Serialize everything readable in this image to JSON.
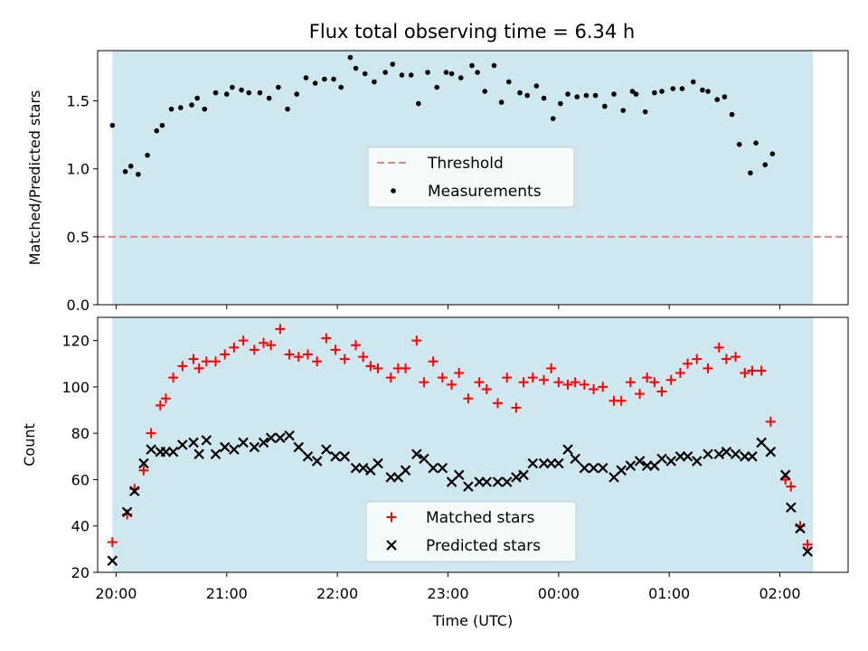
{
  "title": "Flux total observing time = 6.34 h",
  "colors": {
    "background_band": "#cfe8f0",
    "threshold": "#f08080",
    "measurements": "#000000",
    "matched": "#ff0000",
    "predicted": "#000000"
  },
  "chart_data": [
    {
      "type": "scatter",
      "panel": "top",
      "title": "Flux total observing time = 6.34 h",
      "ylabel": "Matched/Predicted stars",
      "xlabel": "",
      "ylim": [
        0,
        1.87
      ],
      "yticks": [
        0.0,
        0.5,
        1.0,
        1.5
      ],
      "ytick_labels": [
        "0.0",
        "0.5",
        "1.0",
        "1.5"
      ],
      "xlim": [
        "19:50",
        "02:37"
      ],
      "xticks": [
        "20:00",
        "21:00",
        "22:00",
        "23:00",
        "00:00",
        "01:00",
        "02:00"
      ],
      "shaded_interval": [
        "19:58",
        "02:18"
      ],
      "legend": {
        "position": "center",
        "entries": [
          "Threshold",
          "Measurements"
        ]
      },
      "threshold": {
        "name": "Threshold",
        "value": 0.5,
        "style": "dashed"
      },
      "series": [
        {
          "name": "Measurements",
          "marker": "dot",
          "points": [
            [
              "19:58",
              1.32
            ],
            [
              "20:05",
              0.98
            ],
            [
              "20:08",
              1.02
            ],
            [
              "20:12",
              0.96
            ],
            [
              "20:17",
              1.1
            ],
            [
              "20:22",
              1.28
            ],
            [
              "20:25",
              1.32
            ],
            [
              "20:30",
              1.44
            ],
            [
              "20:35",
              1.45
            ],
            [
              "20:41",
              1.47
            ],
            [
              "20:44",
              1.52
            ],
            [
              "20:48",
              1.44
            ],
            [
              "20:54",
              1.56
            ],
            [
              "21:00",
              1.55
            ],
            [
              "21:03",
              1.6
            ],
            [
              "21:08",
              1.58
            ],
            [
              "21:12",
              1.56
            ],
            [
              "21:18",
              1.56
            ],
            [
              "21:23",
              1.52
            ],
            [
              "21:28",
              1.6
            ],
            [
              "21:33",
              1.44
            ],
            [
              "21:38",
              1.55
            ],
            [
              "21:43",
              1.67
            ],
            [
              "21:48",
              1.63
            ],
            [
              "21:53",
              1.66
            ],
            [
              "21:58",
              1.66
            ],
            [
              "22:02",
              1.6
            ],
            [
              "22:07",
              1.82
            ],
            [
              "22:10",
              1.74
            ],
            [
              "22:15",
              1.7
            ],
            [
              "22:20",
              1.64
            ],
            [
              "22:26",
              1.71
            ],
            [
              "22:30",
              1.77
            ],
            [
              "22:35",
              1.69
            ],
            [
              "22:40",
              1.69
            ],
            [
              "22:44",
              1.48
            ],
            [
              "22:49",
              1.71
            ],
            [
              "22:54",
              1.6
            ],
            [
              "22:59",
              1.71
            ],
            [
              "23:02",
              1.7
            ],
            [
              "23:07",
              1.67
            ],
            [
              "23:13",
              1.76
            ],
            [
              "23:16",
              1.71
            ],
            [
              "23:20",
              1.57
            ],
            [
              "23:25",
              1.76
            ],
            [
              "23:29",
              1.49
            ],
            [
              "23:33",
              1.64
            ],
            [
              "23:39",
              1.56
            ],
            [
              "23:43",
              1.54
            ],
            [
              "23:48",
              1.61
            ],
            [
              "23:52",
              1.52
            ],
            [
              "23:57",
              1.37
            ],
            [
              "00:01",
              1.48
            ],
            [
              "00:05",
              1.55
            ],
            [
              "00:10",
              1.53
            ],
            [
              "00:15",
              1.54
            ],
            [
              "00:20",
              1.54
            ],
            [
              "00:25",
              1.46
            ],
            [
              "00:30",
              1.55
            ],
            [
              "00:35",
              1.43
            ],
            [
              "00:40",
              1.57
            ],
            [
              "00:42",
              1.55
            ],
            [
              "00:47",
              1.42
            ],
            [
              "00:52",
              1.56
            ],
            [
              "00:56",
              1.57
            ],
            [
              "01:02",
              1.59
            ],
            [
              "01:07",
              1.59
            ],
            [
              "01:13",
              1.64
            ],
            [
              "01:18",
              1.58
            ],
            [
              "01:21",
              1.57
            ],
            [
              "01:26",
              1.51
            ],
            [
              "01:30",
              1.53
            ],
            [
              "01:34",
              1.4
            ],
            [
              "01:38",
              1.18
            ],
            [
              "01:44",
              0.97
            ],
            [
              "01:47",
              1.19
            ],
            [
              "01:52",
              1.03
            ],
            [
              "01:56",
              1.11
            ]
          ]
        }
      ]
    },
    {
      "type": "scatter",
      "panel": "bottom",
      "title": "",
      "ylabel": "Count",
      "xlabel": "Time (UTC)",
      "ylim": [
        20,
        130
      ],
      "yticks": [
        20,
        40,
        60,
        80,
        100,
        120
      ],
      "ytick_labels": [
        "20",
        "40",
        "60",
        "80",
        "100",
        "120"
      ],
      "xlim": [
        "19:50",
        "02:37"
      ],
      "xticks": [
        "20:00",
        "21:00",
        "22:00",
        "23:00",
        "00:00",
        "01:00",
        "02:00"
      ],
      "shaded_interval": [
        "19:58",
        "02:18"
      ],
      "legend": {
        "position": "lower center",
        "entries": [
          "Matched stars",
          "Predicted stars"
        ]
      },
      "series": [
        {
          "name": "Matched stars",
          "marker": "plus",
          "points": [
            [
              "19:58",
              33
            ],
            [
              "20:06",
              45
            ],
            [
              "20:10",
              56
            ],
            [
              "20:15",
              64
            ],
            [
              "20:19",
              80
            ],
            [
              "20:24",
              92
            ],
            [
              "20:27",
              95
            ],
            [
              "20:31",
              104
            ],
            [
              "20:36",
              109
            ],
            [
              "20:42",
              112
            ],
            [
              "20:45",
              108
            ],
            [
              "20:49",
              111
            ],
            [
              "20:54",
              111
            ],
            [
              "20:59",
              114
            ],
            [
              "21:04",
              117
            ],
            [
              "21:09",
              120
            ],
            [
              "21:15",
              116
            ],
            [
              "21:20",
              119
            ],
            [
              "21:24",
              118
            ],
            [
              "21:29",
              125
            ],
            [
              "21:34",
              114
            ],
            [
              "21:39",
              113
            ],
            [
              "21:44",
              114
            ],
            [
              "21:49",
              111
            ],
            [
              "21:54",
              121
            ],
            [
              "21:59",
              116
            ],
            [
              "22:04",
              112
            ],
            [
              "22:10",
              118
            ],
            [
              "22:14",
              113
            ],
            [
              "22:18",
              109
            ],
            [
              "22:22",
              108
            ],
            [
              "22:29",
              104
            ],
            [
              "22:33",
              108
            ],
            [
              "22:37",
              108
            ],
            [
              "22:43",
              120
            ],
            [
              "22:47",
              102
            ],
            [
              "22:52",
              111
            ],
            [
              "22:57",
              104
            ],
            [
              "23:02",
              101
            ],
            [
              "23:06",
              106
            ],
            [
              "23:11",
              95
            ],
            [
              "23:17",
              102
            ],
            [
              "23:21",
              99
            ],
            [
              "23:27",
              93
            ],
            [
              "23:32",
              104
            ],
            [
              "23:37",
              91
            ],
            [
              "23:41",
              102
            ],
            [
              "23:46",
              104
            ],
            [
              "23:52",
              103
            ],
            [
              "23:56",
              108
            ],
            [
              "00:00",
              102
            ],
            [
              "00:05",
              101
            ],
            [
              "00:09",
              102
            ],
            [
              "00:14",
              101
            ],
            [
              "00:19",
              99
            ],
            [
              "00:24",
              100
            ],
            [
              "00:30",
              94
            ],
            [
              "00:34",
              94
            ],
            [
              "00:39",
              102
            ],
            [
              "00:44",
              97
            ],
            [
              "00:48",
              104
            ],
            [
              "00:52",
              102
            ],
            [
              "00:56",
              98
            ],
            [
              "01:01",
              103
            ],
            [
              "01:06",
              106
            ],
            [
              "01:10",
              110
            ],
            [
              "01:15",
              112
            ],
            [
              "01:21",
              108
            ],
            [
              "01:27",
              117
            ],
            [
              "01:31",
              112
            ],
            [
              "01:36",
              113
            ],
            [
              "01:41",
              106
            ],
            [
              "01:45",
              107
            ],
            [
              "01:50",
              107
            ],
            [
              "01:55",
              85
            ],
            [
              "02:03",
              60
            ],
            [
              "02:06",
              57
            ],
            [
              "02:11",
              40
            ],
            [
              "02:15",
              32
            ]
          ]
        },
        {
          "name": "Predicted stars",
          "marker": "x",
          "points": [
            [
              "19:58",
              25
            ],
            [
              "20:06",
              46
            ],
            [
              "20:10",
              55
            ],
            [
              "20:15",
              67
            ],
            [
              "20:19",
              73
            ],
            [
              "20:24",
              72
            ],
            [
              "20:27",
              72
            ],
            [
              "20:31",
              72
            ],
            [
              "20:36",
              75
            ],
            [
              "20:42",
              76
            ],
            [
              "20:45",
              71
            ],
            [
              "20:49",
              77
            ],
            [
              "20:54",
              71
            ],
            [
              "20:59",
              74
            ],
            [
              "21:04",
              73
            ],
            [
              "21:09",
              76
            ],
            [
              "21:15",
              74
            ],
            [
              "21:20",
              76
            ],
            [
              "21:24",
              78
            ],
            [
              "21:29",
              78
            ],
            [
              "21:34",
              79
            ],
            [
              "21:39",
              74
            ],
            [
              "21:44",
              70
            ],
            [
              "21:49",
              68
            ],
            [
              "21:54",
              73
            ],
            [
              "21:59",
              70
            ],
            [
              "22:04",
              70
            ],
            [
              "22:10",
              65
            ],
            [
              "22:14",
              65
            ],
            [
              "22:18",
              64
            ],
            [
              "22:22",
              67
            ],
            [
              "22:29",
              61
            ],
            [
              "22:33",
              61
            ],
            [
              "22:37",
              64
            ],
            [
              "22:43",
              71
            ],
            [
              "22:47",
              69
            ],
            [
              "22:52",
              65
            ],
            [
              "22:57",
              65
            ],
            [
              "23:02",
              59
            ],
            [
              "23:06",
              62
            ],
            [
              "23:11",
              57
            ],
            [
              "23:17",
              59
            ],
            [
              "23:21",
              59
            ],
            [
              "23:27",
              59
            ],
            [
              "23:32",
              59
            ],
            [
              "23:37",
              61
            ],
            [
              "23:41",
              62
            ],
            [
              "23:46",
              67
            ],
            [
              "23:52",
              67
            ],
            [
              "23:56",
              67
            ],
            [
              "00:00",
              67
            ],
            [
              "00:05",
              73
            ],
            [
              "00:09",
              69
            ],
            [
              "00:14",
              65
            ],
            [
              "00:19",
              65
            ],
            [
              "00:24",
              65
            ],
            [
              "00:30",
              61
            ],
            [
              "00:34",
              64
            ],
            [
              "00:39",
              66
            ],
            [
              "00:44",
              68
            ],
            [
              "00:48",
              66
            ],
            [
              "00:52",
              66
            ],
            [
              "00:56",
              69
            ],
            [
              "01:01",
              68
            ],
            [
              "01:06",
              70
            ],
            [
              "01:10",
              70
            ],
            [
              "01:15",
              68
            ],
            [
              "01:21",
              71
            ],
            [
              "01:27",
              71
            ],
            [
              "01:31",
              72
            ],
            [
              "01:36",
              71
            ],
            [
              "01:41",
              70
            ],
            [
              "01:45",
              70
            ],
            [
              "01:50",
              76
            ],
            [
              "01:55",
              72
            ],
            [
              "02:03",
              62
            ],
            [
              "02:06",
              48
            ],
            [
              "02:11",
              39
            ],
            [
              "02:15",
              29
            ]
          ]
        }
      ]
    }
  ]
}
